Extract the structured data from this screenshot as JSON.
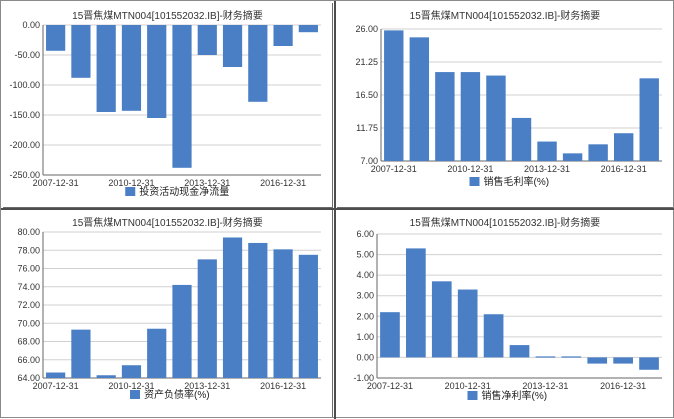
{
  "colors": {
    "bar": "#4a7fc6",
    "grid": "#d0d0d0",
    "axis": "#666666"
  },
  "chart_data": [
    {
      "type": "bar",
      "panel": "top-left",
      "title": "15晋焦煤MTN004[101552032.IB]-财务摘要",
      "legend": "投资活动现金净流量",
      "legend_position": "bottom",
      "x_tick_labels": [
        "2007-12-31",
        "2010-12-31",
        "2013-12-31",
        "2016-12-31"
      ],
      "y_tick_labels": [
        "0.00",
        "-50.00",
        "-100.00",
        "-150.00",
        "-200.00",
        "-250.00"
      ],
      "ylim": [
        -250,
        0
      ],
      "grid": true,
      "values": [
        -43,
        -88,
        -145,
        -143,
        -155,
        -238,
        -50,
        -70,
        -128,
        -35,
        -12
      ]
    },
    {
      "type": "bar",
      "panel": "top-right",
      "title": "15晋焦煤MTN004[101552032.IB]-财务摘要",
      "legend": "销售毛利率(%)",
      "legend_position": "bottom",
      "x_tick_labels": [
        "2007-12-31",
        "2010-12-31",
        "2013-12-31",
        "2016-12-31"
      ],
      "y_tick_labels": [
        "26.00",
        "21.25",
        "16.50",
        "11.75",
        "7.00"
      ],
      "ylim": [
        7,
        26
      ],
      "grid": true,
      "values": [
        25.8,
        24.8,
        19.8,
        19.8,
        19.3,
        13.2,
        9.8,
        8.1,
        9.4,
        11.0,
        18.9
      ]
    },
    {
      "type": "bar",
      "panel": "bottom-left",
      "title": "15晋焦煤MTN004[101552032.IB]-财务摘要",
      "legend": "资产负债率(%)",
      "legend_position": "bottom",
      "x_tick_labels": [
        "2007-12-31",
        "2010-12-31",
        "2013-12-31",
        "2016-12-31"
      ],
      "y_tick_labels": [
        "80.00",
        "78.00",
        "76.00",
        "74.00",
        "72.00",
        "70.00",
        "68.00",
        "66.00",
        "64.00"
      ],
      "ylim": [
        64,
        80
      ],
      "grid": true,
      "values": [
        64.6,
        69.3,
        64.3,
        65.4,
        69.4,
        74.2,
        77.0,
        79.4,
        78.8,
        78.1,
        77.5
      ]
    },
    {
      "type": "bar",
      "panel": "bottom-right",
      "title": "15晋焦煤MTN004[101552032.IB]-财务摘要",
      "legend": "销售净利率(%)",
      "legend_position": "bottom",
      "x_tick_labels": [
        "2007-12-31",
        "2010-12-31",
        "2013-12-31",
        "2016-12-31"
      ],
      "y_tick_labels": [
        "6.00",
        "5.00",
        "4.00",
        "3.00",
        "2.00",
        "1.00",
        "0.00",
        "-1.00"
      ],
      "ylim": [
        -1,
        6
      ],
      "grid": true,
      "values": [
        2.2,
        5.3,
        3.7,
        3.3,
        2.1,
        0.6,
        0.05,
        0.05,
        -0.3,
        -0.3,
        -0.6
      ]
    }
  ]
}
